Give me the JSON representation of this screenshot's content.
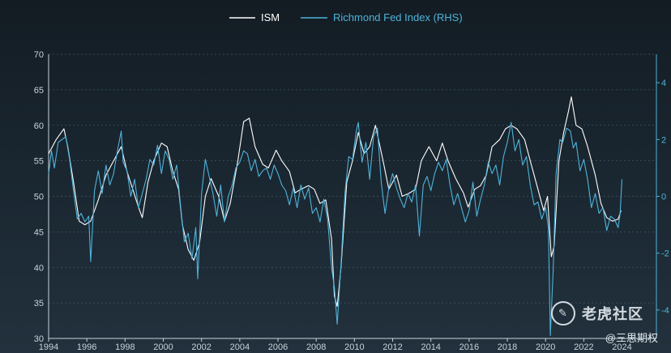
{
  "chart_data": {
    "type": "line",
    "title": "",
    "xlabel": "",
    "ylabel": "",
    "legend_position": "top-center",
    "grid": true,
    "x_ticks": [
      "1994",
      "1996",
      "1998",
      "2000",
      "2002",
      "2004",
      "2006",
      "2008",
      "2010",
      "2012",
      "2014",
      "2016",
      "2018",
      "2020",
      "2022",
      "2024"
    ],
    "xlim": [
      1994,
      2025.8
    ],
    "left_axis": {
      "ylim": [
        30,
        70
      ],
      "ticks": [
        30,
        35,
        40,
        45,
        50,
        55,
        60,
        65,
        70
      ]
    },
    "right_axis": {
      "ylim": [
        -5,
        5
      ],
      "ticks": [
        -4,
        -2,
        0,
        2,
        4
      ],
      "tick_labels": [
        "-4",
        "-2",
        "0",
        "2",
        "4"
      ]
    },
    "series": [
      {
        "name": "ISM",
        "axis": "left",
        "color": "#ffffff",
        "points": [
          [
            1994.0,
            56
          ],
          [
            1994.4,
            58
          ],
          [
            1994.8,
            59.5
          ],
          [
            1995.0,
            57
          ],
          [
            1995.3,
            52
          ],
          [
            1995.6,
            46.5
          ],
          [
            1995.9,
            46
          ],
          [
            1996.2,
            46.5
          ],
          [
            1996.6,
            49.5
          ],
          [
            1997.0,
            53
          ],
          [
            1997.4,
            55
          ],
          [
            1997.8,
            57
          ],
          [
            1998.1,
            53.5
          ],
          [
            1998.4,
            51
          ],
          [
            1998.7,
            48.5
          ],
          [
            1998.9,
            47
          ],
          [
            1999.2,
            52
          ],
          [
            1999.5,
            55
          ],
          [
            1999.9,
            57.5
          ],
          [
            2000.2,
            57
          ],
          [
            2000.5,
            53.5
          ],
          [
            2000.8,
            51
          ],
          [
            2001.0,
            46
          ],
          [
            2001.3,
            42.5
          ],
          [
            2001.6,
            41
          ],
          [
            2001.9,
            43.5
          ],
          [
            2002.2,
            50
          ],
          [
            2002.5,
            52.5
          ],
          [
            2002.9,
            50
          ],
          [
            2003.2,
            46.5
          ],
          [
            2003.5,
            49
          ],
          [
            2003.9,
            55
          ],
          [
            2004.2,
            60.5
          ],
          [
            2004.5,
            61
          ],
          [
            2004.8,
            57
          ],
          [
            2005.2,
            54.5
          ],
          [
            2005.5,
            54
          ],
          [
            2005.9,
            56.5
          ],
          [
            2006.2,
            55
          ],
          [
            2006.6,
            53.5
          ],
          [
            2006.9,
            50.5
          ],
          [
            2007.2,
            51
          ],
          [
            2007.6,
            51.5
          ],
          [
            2007.9,
            51
          ],
          [
            2008.2,
            49
          ],
          [
            2008.5,
            49.5
          ],
          [
            2008.8,
            44
          ],
          [
            2008.95,
            36
          ],
          [
            2009.1,
            34.5
          ],
          [
            2009.3,
            40
          ],
          [
            2009.6,
            52
          ],
          [
            2009.9,
            55
          ],
          [
            2010.2,
            59
          ],
          [
            2010.5,
            56
          ],
          [
            2010.8,
            57
          ],
          [
            2011.1,
            60
          ],
          [
            2011.5,
            55
          ],
          [
            2011.8,
            51
          ],
          [
            2012.2,
            53
          ],
          [
            2012.5,
            50
          ],
          [
            2012.9,
            50.5
          ],
          [
            2013.2,
            51
          ],
          [
            2013.5,
            55
          ],
          [
            2013.9,
            57
          ],
          [
            2014.3,
            55
          ],
          [
            2014.6,
            57.5
          ],
          [
            2014.9,
            55
          ],
          [
            2015.3,
            52.5
          ],
          [
            2015.7,
            50.5
          ],
          [
            2015.95,
            48.5
          ],
          [
            2016.3,
            51
          ],
          [
            2016.6,
            51.5
          ],
          [
            2016.9,
            53
          ],
          [
            2017.2,
            57
          ],
          [
            2017.6,
            58
          ],
          [
            2017.9,
            59.5
          ],
          [
            2018.2,
            60
          ],
          [
            2018.5,
            59.5
          ],
          [
            2018.9,
            58
          ],
          [
            2019.2,
            55
          ],
          [
            2019.6,
            51
          ],
          [
            2019.9,
            48
          ],
          [
            2020.1,
            50
          ],
          [
            2020.3,
            41.5
          ],
          [
            2020.45,
            43
          ],
          [
            2020.7,
            55
          ],
          [
            2020.95,
            59
          ],
          [
            2021.2,
            62
          ],
          [
            2021.35,
            64
          ],
          [
            2021.6,
            60
          ],
          [
            2021.9,
            59.5
          ],
          [
            2022.2,
            57
          ],
          [
            2022.6,
            53
          ],
          [
            2022.9,
            49
          ],
          [
            2023.2,
            47
          ],
          [
            2023.5,
            46.5
          ],
          [
            2023.8,
            46.8
          ],
          [
            2023.95,
            48
          ]
        ]
      },
      {
        "name": "Richmond Fed Index (RHS)",
        "axis": "right",
        "color": "#4fb3da",
        "points": [
          [
            1994.0,
            0.8
          ],
          [
            1994.15,
            1.6
          ],
          [
            1994.3,
            1.0
          ],
          [
            1994.5,
            1.9
          ],
          [
            1994.7,
            2.0
          ],
          [
            1994.9,
            2.1
          ],
          [
            1995.1,
            1.3
          ],
          [
            1995.3,
            0.2
          ],
          [
            1995.5,
            -0.8
          ],
          [
            1995.7,
            -0.6
          ],
          [
            1995.9,
            -0.9
          ],
          [
            1996.1,
            -0.7
          ],
          [
            1996.2,
            -2.3
          ],
          [
            1996.4,
            0.2
          ],
          [
            1996.6,
            0.9
          ],
          [
            1996.8,
            0.1
          ],
          [
            1997.0,
            1.1
          ],
          [
            1997.2,
            0.4
          ],
          [
            1997.4,
            0.8
          ],
          [
            1997.6,
            1.6
          ],
          [
            1997.8,
            2.3
          ],
          [
            1997.9,
            1.2
          ],
          [
            1998.1,
            0.9
          ],
          [
            1998.3,
            0.0
          ],
          [
            1998.5,
            0.6
          ],
          [
            1998.7,
            -0.4
          ],
          [
            1998.9,
            0.1
          ],
          [
            1999.1,
            0.6
          ],
          [
            1999.3,
            1.3
          ],
          [
            1999.5,
            1.1
          ],
          [
            1999.7,
            1.8
          ],
          [
            1999.9,
            0.8
          ],
          [
            2000.1,
            1.6
          ],
          [
            2000.3,
            1.3
          ],
          [
            2000.5,
            0.6
          ],
          [
            2000.7,
            1.1
          ],
          [
            2000.9,
            -0.3
          ],
          [
            2001.1,
            -1.6
          ],
          [
            2001.3,
            -1.3
          ],
          [
            2001.5,
            -2.2
          ],
          [
            2001.7,
            -1.1
          ],
          [
            2001.8,
            -2.9
          ],
          [
            2002.0,
            0.1
          ],
          [
            2002.2,
            1.3
          ],
          [
            2002.4,
            0.7
          ],
          [
            2002.6,
            0.1
          ],
          [
            2002.8,
            -0.7
          ],
          [
            2003.0,
            0.4
          ],
          [
            2003.2,
            -0.9
          ],
          [
            2003.4,
            0.0
          ],
          [
            2003.6,
            0.4
          ],
          [
            2003.8,
            1.0
          ],
          [
            2004.0,
            1.2
          ],
          [
            2004.2,
            1.6
          ],
          [
            2004.4,
            1.5
          ],
          [
            2004.6,
            0.9
          ],
          [
            2004.8,
            1.3
          ],
          [
            2005.0,
            0.7
          ],
          [
            2005.2,
            0.9
          ],
          [
            2005.4,
            1.0
          ],
          [
            2005.6,
            0.6
          ],
          [
            2005.8,
            1.1
          ],
          [
            2006.0,
            0.8
          ],
          [
            2006.2,
            0.4
          ],
          [
            2006.4,
            0.2
          ],
          [
            2006.6,
            -0.3
          ],
          [
            2006.8,
            0.3
          ],
          [
            2007.0,
            -0.4
          ],
          [
            2007.2,
            0.4
          ],
          [
            2007.4,
            -0.1
          ],
          [
            2007.6,
            0.3
          ],
          [
            2007.8,
            -0.6
          ],
          [
            2008.0,
            -0.4
          ],
          [
            2008.2,
            -0.9
          ],
          [
            2008.4,
            -0.1
          ],
          [
            2008.6,
            -0.8
          ],
          [
            2008.8,
            -2.5
          ],
          [
            2008.95,
            -3.2
          ],
          [
            2009.1,
            -4.5
          ],
          [
            2009.3,
            -2.4
          ],
          [
            2009.5,
            0.1
          ],
          [
            2009.7,
            1.4
          ],
          [
            2009.9,
            1.3
          ],
          [
            2010.1,
            2.3
          ],
          [
            2010.2,
            2.6
          ],
          [
            2010.4,
            1.2
          ],
          [
            2010.6,
            1.9
          ],
          [
            2010.8,
            0.6
          ],
          [
            2011.0,
            2.1
          ],
          [
            2011.2,
            2.4
          ],
          [
            2011.4,
            0.5
          ],
          [
            2011.6,
            -0.6
          ],
          [
            2011.8,
            0.3
          ],
          [
            2012.0,
            0.8
          ],
          [
            2012.2,
            0.3
          ],
          [
            2012.4,
            -0.1
          ],
          [
            2012.6,
            -0.4
          ],
          [
            2012.8,
            0.1
          ],
          [
            2013.0,
            -0.2
          ],
          [
            2013.2,
            0.4
          ],
          [
            2013.4,
            -1.4
          ],
          [
            2013.6,
            0.4
          ],
          [
            2013.8,
            0.7
          ],
          [
            2014.0,
            0.2
          ],
          [
            2014.2,
            0.8
          ],
          [
            2014.4,
            1.2
          ],
          [
            2014.6,
            0.9
          ],
          [
            2014.8,
            1.3
          ],
          [
            2015.0,
            0.4
          ],
          [
            2015.2,
            -0.3
          ],
          [
            2015.4,
            0.1
          ],
          [
            2015.6,
            -0.4
          ],
          [
            2015.8,
            -0.9
          ],
          [
            2016.0,
            -0.5
          ],
          [
            2016.2,
            0.5
          ],
          [
            2016.4,
            -0.7
          ],
          [
            2016.6,
            -0.1
          ],
          [
            2016.8,
            0.4
          ],
          [
            2017.0,
            1.2
          ],
          [
            2017.2,
            0.8
          ],
          [
            2017.4,
            1.1
          ],
          [
            2017.6,
            0.4
          ],
          [
            2017.8,
            1.4
          ],
          [
            2018.0,
            1.9
          ],
          [
            2018.2,
            2.6
          ],
          [
            2018.4,
            1.6
          ],
          [
            2018.6,
            2.0
          ],
          [
            2018.8,
            1.1
          ],
          [
            2019.0,
            1.4
          ],
          [
            2019.2,
            0.4
          ],
          [
            2019.4,
            -0.3
          ],
          [
            2019.6,
            -0.2
          ],
          [
            2019.8,
            -0.8
          ],
          [
            2020.0,
            -0.4
          ],
          [
            2020.15,
            -1.1
          ],
          [
            2020.25,
            -4.9
          ],
          [
            2020.4,
            -2.6
          ],
          [
            2020.55,
            0.8
          ],
          [
            2020.75,
            2.0
          ],
          [
            2020.9,
            1.9
          ],
          [
            2021.1,
            2.4
          ],
          [
            2021.3,
            2.3
          ],
          [
            2021.45,
            1.7
          ],
          [
            2021.6,
            1.9
          ],
          [
            2021.8,
            0.9
          ],
          [
            2022.0,
            1.3
          ],
          [
            2022.2,
            0.6
          ],
          [
            2022.4,
            -0.4
          ],
          [
            2022.6,
            0.1
          ],
          [
            2022.8,
            -0.6
          ],
          [
            2023.0,
            -0.4
          ],
          [
            2023.2,
            -1.2
          ],
          [
            2023.4,
            -0.7
          ],
          [
            2023.6,
            -0.8
          ],
          [
            2023.8,
            -1.1
          ],
          [
            2023.9,
            -0.6
          ],
          [
            2024.0,
            0.6
          ]
        ]
      }
    ]
  },
  "watermark": {
    "logo_text": "老虎社区",
    "handle": "@三思期权"
  }
}
